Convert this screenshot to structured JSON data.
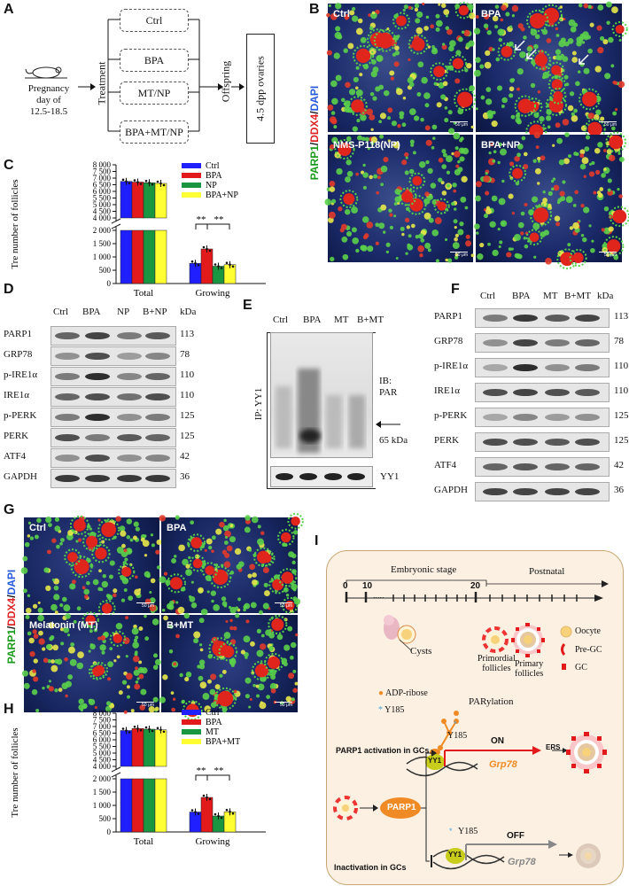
{
  "panel_letters": {
    "A": "A",
    "B": "B",
    "C": "C",
    "D": "D",
    "E": "E",
    "F": "F",
    "G": "G",
    "H": "H",
    "I": "I"
  },
  "panelA": {
    "pregnancy": [
      "Pregnancy",
      "day of",
      "12.5-18.5"
    ],
    "treatment": "Treatment",
    "groups": [
      "Ctrl",
      "BPA",
      "MT/NP",
      "BPA+MT/NP"
    ],
    "offspring": "Offspring",
    "result": "4.5 dpp ovaries"
  },
  "panelB": {
    "side_label_parp1": "PARP1",
    "side_label_ddx4": "DDX4",
    "side_label_dapi": "DAPI",
    "sep": "/",
    "images": [
      "Ctrl",
      "BPA",
      "NMS-P118(NP)",
      "BPA+NP"
    ],
    "scale": "50 μm"
  },
  "panelC": {
    "ylabel": "Tre number of follicles",
    "legend": [
      "Ctrl",
      "BPA",
      "NP",
      "BPA+NP"
    ],
    "sig": [
      "**",
      "**"
    ]
  },
  "panelD": {
    "columns": [
      "Ctrl",
      "BPA",
      "NP",
      "B+NP"
    ],
    "kda_header": "kDa",
    "rows": [
      {
        "name": "PARP1",
        "kda": "113"
      },
      {
        "name": "GRP78",
        "kda": "78"
      },
      {
        "name": "p-IRE1α",
        "kda": "110"
      },
      {
        "name": "IRE1α",
        "kda": "110"
      },
      {
        "name": "p-PERK",
        "kda": "125"
      },
      {
        "name": "PERK",
        "kda": "125"
      },
      {
        "name": "ATF4",
        "kda": "42"
      },
      {
        "name": "GAPDH",
        "kda": "36"
      }
    ]
  },
  "panelE": {
    "columns": [
      "Ctrl",
      "BPA",
      "MT",
      "B+MT"
    ],
    "ip": "IP: YY1",
    "ib": [
      "IB:",
      "PAR"
    ],
    "kda": "65 kDa",
    "yy1": "YY1"
  },
  "panelF": {
    "columns": [
      "Ctrl",
      "BPA",
      "MT",
      "B+MT"
    ],
    "kda_header": "kDa",
    "rows": [
      {
        "name": "PARP1",
        "kda": "113"
      },
      {
        "name": "GRP78",
        "kda": "78"
      },
      {
        "name": "p-IRE1α",
        "kda": "110"
      },
      {
        "name": "IRE1α",
        "kda": "110"
      },
      {
        "name": "p-PERK",
        "kda": "125"
      },
      {
        "name": "PERK",
        "kda": "125"
      },
      {
        "name": "ATF4",
        "kda": "42"
      },
      {
        "name": "GAPDH",
        "kda": "36"
      }
    ]
  },
  "panelG": {
    "side_label_parp1": "PARP1",
    "side_label_ddx4": "DDX4",
    "side_label_dapi": "DAPI",
    "sep": "/",
    "images": [
      "Ctrl",
      "BPA",
      "Melatonin (MT)",
      "B+MT"
    ],
    "scale": "50 μm"
  },
  "panelH": {
    "ylabel": "Tre number of follicles",
    "legend": [
      "Ctrl",
      "BPA",
      "MT",
      "BPA+MT"
    ],
    "sig": [
      "**",
      "**"
    ]
  },
  "panelI": {
    "embryonic": "Embryonic stage",
    "postnatal": "Postnatal",
    "ticks": [
      "0",
      "10",
      "20"
    ],
    "dots": ".....",
    "cysts": "Cysts",
    "primordial": [
      "Primordial",
      "follicles"
    ],
    "primary": [
      "Primary",
      "follicles"
    ],
    "legend": [
      "Oocyte",
      "Pre-GC",
      "GC"
    ],
    "adp": "ADP-ribose",
    "y185": "Y185",
    "parylation": "PARylation",
    "activation": "PARP1 activation in GCs",
    "inactivation": "Inactivation in GCs",
    "yy1": "YY1",
    "on": "ON",
    "off": "OFF",
    "ers": "ERS",
    "grp78": "Grp78",
    "parp1": "PARP1"
  },
  "colors": {
    "ctrl": "#1f1fff",
    "bpa": "#e31a1c",
    "np": "#1a9641",
    "bpanp": "#ffff33",
    "accent_orange": "#f08a24",
    "panel_bg": "#fbf0e2"
  },
  "chart_data": [
    {
      "type": "bar",
      "title": "",
      "xlabel": "",
      "ylabel": "Tre number of follicles",
      "categories": [
        "Total",
        "Growing"
      ],
      "series": [
        {
          "name": "Ctrl",
          "values": [
            6750,
            760
          ]
        },
        {
          "name": "BPA",
          "values": [
            6700,
            1300
          ]
        },
        {
          "name": "NP",
          "values": [
            6650,
            650
          ]
        },
        {
          "name": "BPA+NP",
          "values": [
            6600,
            710
          ]
        }
      ],
      "y_segments": [
        [
          0,
          2000
        ],
        [
          4000,
          8000
        ]
      ],
      "yticks": [
        "0",
        "500",
        "1 000",
        "1 500",
        "2 000",
        "4 000",
        "4 500",
        "5 000",
        "5 500",
        "6 000",
        "6 500",
        "7 000",
        "7 500",
        "8 000"
      ]
    },
    {
      "type": "bar",
      "title": "",
      "xlabel": "",
      "ylabel": "Tre number of follicles",
      "categories": [
        "Total",
        "Growing"
      ],
      "series": [
        {
          "name": "Ctrl",
          "values": [
            6700,
            750
          ]
        },
        {
          "name": "BPA",
          "values": [
            6850,
            1300
          ]
        },
        {
          "name": "MT",
          "values": [
            6800,
            600
          ]
        },
        {
          "name": "BPA+MT",
          "values": [
            6750,
            760
          ]
        }
      ],
      "y_segments": [
        [
          0,
          2000
        ],
        [
          4000,
          8000
        ]
      ],
      "yticks": [
        "0",
        "500",
        "1 000",
        "1 500",
        "2 000",
        "4 000",
        "4 500",
        "5 000",
        "5 500",
        "6 000",
        "6 500",
        "7 000",
        "7 500",
        "8 000"
      ]
    }
  ]
}
